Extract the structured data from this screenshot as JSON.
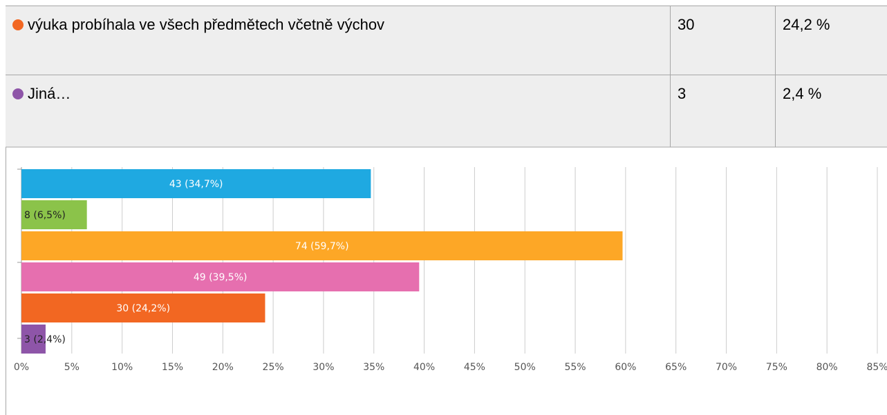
{
  "table": {
    "rows": [
      {
        "label": "výuka probíhala ve všech předmětech včetně výchov",
        "count": "30",
        "percent": "24,2 %",
        "color": "#f26722"
      },
      {
        "label": "Jiná…",
        "count": "3",
        "percent": "2,4 %",
        "color": "#8e55a8"
      }
    ]
  },
  "chart_data": {
    "type": "bar",
    "orientation": "horizontal",
    "categories": [
      null,
      null,
      null,
      null,
      null,
      null
    ],
    "values": [
      34.7,
      6.5,
      59.7,
      39.5,
      24.2,
      2.4
    ],
    "value_labels": [
      "43 (34,7%)",
      "8 (6,5%)",
      "74 (59,7%)",
      "49 (39,5%)",
      "30 (24,2%)",
      "3 (2,4%)"
    ],
    "colors": [
      "#1fa9e1",
      "#8bc34a",
      "#fda726",
      "#e66faf",
      "#f26722",
      "#8e55a8"
    ],
    "xlim": [
      0,
      85
    ],
    "xticks": [
      {
        "value": 0,
        "label": "0%"
      },
      {
        "value": 5,
        "label": "5%"
      },
      {
        "value": 10,
        "label": "10%"
      },
      {
        "value": 15,
        "label": "15%"
      },
      {
        "value": 20,
        "label": "20%"
      },
      {
        "value": 25,
        "label": "25%"
      },
      {
        "value": 30,
        "label": "30%"
      },
      {
        "value": 35,
        "label": "35%"
      },
      {
        "value": 40,
        "label": "40%"
      },
      {
        "value": 45,
        "label": "45%"
      },
      {
        "value": 50,
        "label": "50%"
      },
      {
        "value": 55,
        "label": "55%"
      },
      {
        "value": 60,
        "label": "60%"
      },
      {
        "value": 65,
        "label": "65%"
      },
      {
        "value": 70,
        "label": "70%"
      },
      {
        "value": 75,
        "label": "75%"
      },
      {
        "value": 80,
        "label": "80%"
      },
      {
        "value": 85,
        "label": "85%"
      }
    ],
    "grid": true
  }
}
